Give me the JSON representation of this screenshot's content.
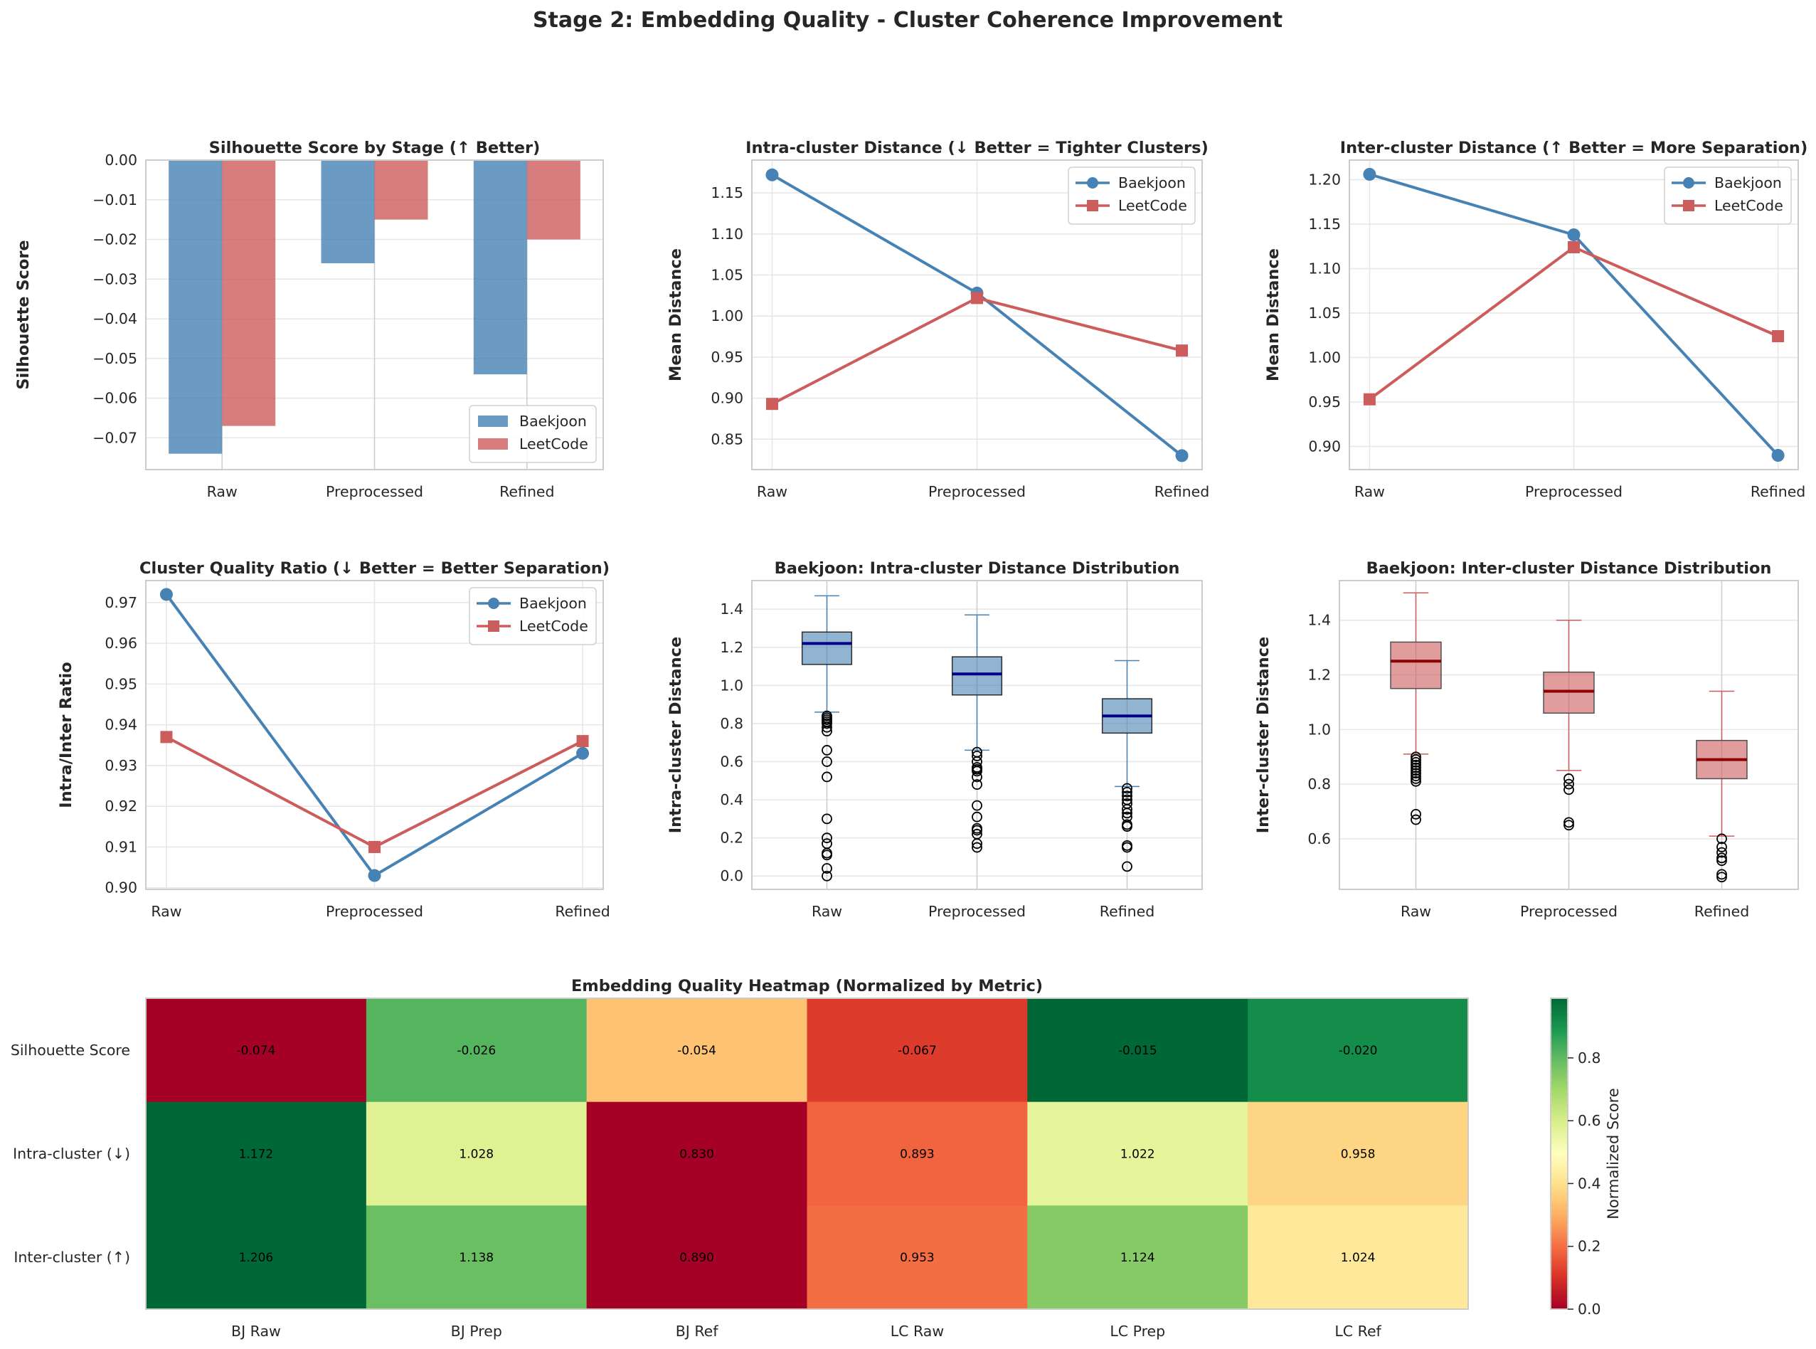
{
  "figure_title": "Stage 2: Embedding Quality - Cluster Coherence Improvement",
  "colors": {
    "baekjoon": "#4682b4",
    "leetcode": "#cd5c5c",
    "median_bj": "#00008b",
    "median_lc": "#8b0000",
    "grid": "#e6e6e6",
    "spine": "#cccccc"
  },
  "chart_data": [
    {
      "id": "silhouette",
      "type": "bar",
      "title": "Silhouette Score by Stage (↑ Better)",
      "xlabel": "",
      "ylabel": "Silhouette Score",
      "categories": [
        "Raw",
        "Preprocessed",
        "Refined"
      ],
      "series": [
        {
          "name": "Baekjoon",
          "values": [
            -0.074,
            -0.026,
            -0.054
          ]
        },
        {
          "name": "LeetCode",
          "values": [
            -0.067,
            -0.015,
            -0.02
          ]
        }
      ],
      "ylim": [
        -0.078,
        0.0
      ],
      "yticks": [
        0.0,
        -0.01,
        -0.02,
        -0.03,
        -0.04,
        -0.05,
        -0.06,
        -0.07
      ],
      "ytick_labels": [
        "0.00",
        "−0.01",
        "−0.02",
        "−0.03",
        "−0.04",
        "−0.05",
        "−0.06",
        "−0.07"
      ],
      "legend": "lower-right"
    },
    {
      "id": "intra",
      "type": "line",
      "title": "Intra-cluster Distance (↓ Better = Tighter Clusters)",
      "xlabel": "",
      "ylabel": "Mean Distance",
      "categories": [
        "Raw",
        "Preprocessed",
        "Refined"
      ],
      "series": [
        {
          "name": "Baekjoon",
          "marker": "circle",
          "values": [
            1.172,
            1.028,
            0.83
          ]
        },
        {
          "name": "LeetCode",
          "marker": "square",
          "values": [
            0.893,
            1.022,
            0.958
          ]
        }
      ],
      "ylim": [
        0.813,
        1.19
      ],
      "yticks": [
        0.85,
        0.9,
        0.95,
        1.0,
        1.05,
        1.1,
        1.15
      ],
      "ytick_labels": [
        "0.85",
        "0.90",
        "0.95",
        "1.00",
        "1.05",
        "1.10",
        "1.15"
      ],
      "legend": "top-right"
    },
    {
      "id": "inter",
      "type": "line",
      "title": "Inter-cluster Distance (↑ Better = More Separation)",
      "xlabel": "",
      "ylabel": "Mean Distance",
      "categories": [
        "Raw",
        "Preprocessed",
        "Refined"
      ],
      "series": [
        {
          "name": "Baekjoon",
          "marker": "circle",
          "values": [
            1.206,
            1.138,
            0.89
          ]
        },
        {
          "name": "LeetCode",
          "marker": "square",
          "values": [
            0.953,
            1.124,
            1.024
          ]
        }
      ],
      "ylim": [
        0.874,
        1.222
      ],
      "yticks": [
        0.9,
        0.95,
        1.0,
        1.05,
        1.1,
        1.15,
        1.2
      ],
      "ytick_labels": [
        "0.90",
        "0.95",
        "1.00",
        "1.05",
        "1.10",
        "1.15",
        "1.20"
      ],
      "legend": "top-right"
    },
    {
      "id": "ratio",
      "type": "line",
      "title": "Cluster Quality Ratio (↓ Better = Better Separation)",
      "xlabel": "",
      "ylabel": "Intra/Inter Ratio",
      "categories": [
        "Raw",
        "Preprocessed",
        "Refined"
      ],
      "series": [
        {
          "name": "Baekjoon",
          "marker": "circle",
          "values": [
            0.972,
            0.903,
            0.933
          ]
        },
        {
          "name": "LeetCode",
          "marker": "square",
          "values": [
            0.937,
            0.91,
            0.936
          ]
        }
      ],
      "ylim": [
        0.8996,
        0.9754
      ],
      "yticks": [
        0.9,
        0.91,
        0.92,
        0.93,
        0.94,
        0.95,
        0.96,
        0.97
      ],
      "ytick_labels": [
        "0.90",
        "0.91",
        "0.92",
        "0.93",
        "0.94",
        "0.95",
        "0.96",
        "0.97"
      ],
      "legend": "top-right"
    },
    {
      "id": "intra_box",
      "type": "box",
      "title": "Baekjoon: Intra-cluster Distance Distribution",
      "xlabel": "",
      "ylabel": "Intra-cluster Distance",
      "categories": [
        "Raw",
        "Preprocessed",
        "Refined"
      ],
      "boxes": [
        {
          "whisker_low": 0.86,
          "q1": 1.11,
          "median": 1.22,
          "q3": 1.28,
          "whisker_high": 1.47,
          "outliers": [
            0.84,
            0.83,
            0.82,
            0.81,
            0.8,
            0.78,
            0.76,
            0.66,
            0.6,
            0.52,
            0.3,
            0.2,
            0.17,
            0.12,
            0.11,
            0.04,
            0.0
          ]
        },
        {
          "whisker_low": 0.66,
          "q1": 0.95,
          "median": 1.06,
          "q3": 1.15,
          "whisker_high": 1.37,
          "outliers": [
            0.65,
            0.63,
            0.6,
            0.57,
            0.56,
            0.55,
            0.52,
            0.48,
            0.37,
            0.31,
            0.25,
            0.24,
            0.22,
            0.17,
            0.15
          ]
        },
        {
          "whisker_low": 0.47,
          "q1": 0.75,
          "median": 0.84,
          "q3": 0.93,
          "whisker_high": 1.13,
          "outliers": [
            0.46,
            0.44,
            0.42,
            0.4,
            0.38,
            0.35,
            0.33,
            0.31,
            0.27,
            0.26,
            0.16,
            0.15,
            0.05
          ]
        }
      ],
      "ylim": [
        -0.07,
        1.55
      ],
      "yticks": [
        0.0,
        0.2,
        0.4,
        0.6,
        0.8,
        1.0,
        1.2,
        1.4
      ],
      "ytick_labels": [
        "0.0",
        "0.2",
        "0.4",
        "0.6",
        "0.8",
        "1.0",
        "1.2",
        "1.4"
      ]
    },
    {
      "id": "inter_box",
      "type": "box",
      "title": "Baekjoon: Inter-cluster Distance Distribution",
      "xlabel": "",
      "ylabel": "Inter-cluster Distance",
      "categories": [
        "Raw",
        "Preprocessed",
        "Refined"
      ],
      "boxes": [
        {
          "whisker_low": 0.91,
          "q1": 1.15,
          "median": 1.25,
          "q3": 1.32,
          "whisker_high": 1.5,
          "outliers": [
            0.9,
            0.89,
            0.88,
            0.87,
            0.86,
            0.85,
            0.84,
            0.83,
            0.82,
            0.81,
            0.69,
            0.67
          ]
        },
        {
          "whisker_low": 0.85,
          "q1": 1.06,
          "median": 1.14,
          "q3": 1.21,
          "whisker_high": 1.4,
          "outliers": [
            0.82,
            0.8,
            0.78,
            0.66,
            0.65
          ]
        },
        {
          "whisker_low": 0.61,
          "q1": 0.82,
          "median": 0.89,
          "q3": 0.96,
          "whisker_high": 1.14,
          "outliers": [
            0.6,
            0.57,
            0.55,
            0.53,
            0.52,
            0.47,
            0.46
          ]
        }
      ],
      "ylim": [
        0.415,
        1.545
      ],
      "yticks": [
        0.6,
        0.8,
        1.0,
        1.2,
        1.4
      ],
      "ytick_labels": [
        "0.6",
        "0.8",
        "1.0",
        "1.2",
        "1.4"
      ]
    },
    {
      "id": "heatmap",
      "type": "heatmap",
      "title": "Embedding Quality Heatmap (Normalized by Metric)",
      "xlabel": "",
      "ylabel": "",
      "columns": [
        "BJ Raw",
        "BJ Prep",
        "BJ Ref",
        "LC Raw",
        "LC Prep",
        "LC Ref"
      ],
      "rows": [
        "Silhouette Score",
        "Intra-cluster (↓)",
        "Inter-cluster (↑)"
      ],
      "cell_labels": [
        [
          "-0.074",
          "-0.026",
          "-0.054",
          "-0.067",
          "-0.015",
          "-0.020"
        ],
        [
          "1.172",
          "1.028",
          "0.830",
          "0.893",
          "1.022",
          "0.958"
        ],
        [
          "1.206",
          "1.138",
          "0.890",
          "0.953",
          "1.124",
          "1.024"
        ]
      ],
      "normalized": [
        [
          0.0,
          0.814,
          0.339,
          0.119,
          1.0,
          0.915
        ],
        [
          1.0,
          0.579,
          0.0,
          0.184,
          0.561,
          0.374
        ],
        [
          1.0,
          0.785,
          0.0,
          0.199,
          0.741,
          0.424
        ]
      ],
      "colorbar": {
        "label": "Normalized Score",
        "colormap": "RdYlGn",
        "range": [
          0.0,
          0.99
        ],
        "ticks": [
          0.0,
          0.2,
          0.4,
          0.6,
          0.8
        ],
        "tick_labels": [
          "0.0",
          "0.2",
          "0.4",
          "0.6",
          "0.8"
        ]
      }
    }
  ]
}
